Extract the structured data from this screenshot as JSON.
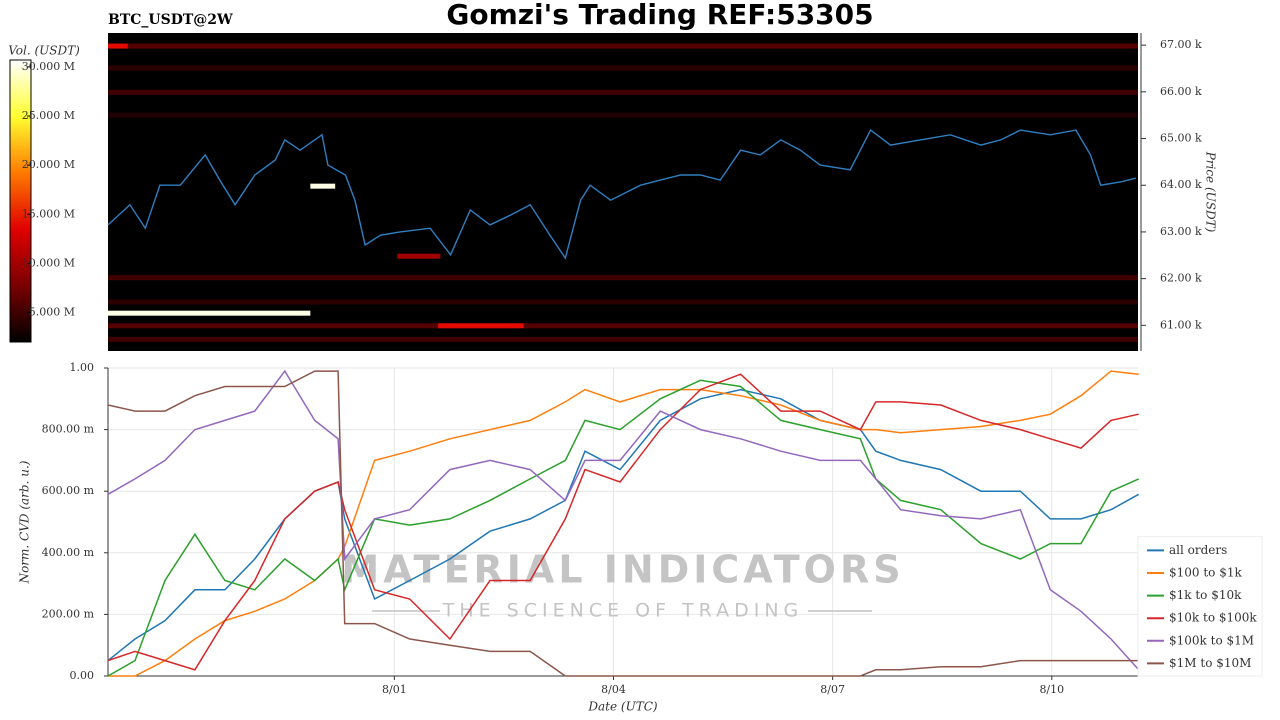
{
  "chart_data": [
    {
      "type": "heatmap",
      "title": "Gomzi's Trading REF:53305",
      "subtitle": "BTC_USDT@2W",
      "ylabel": "Price (USDT)",
      "zlabel": "Vol. (USDT)",
      "xlim": [
        -2.92,
        11.18
      ],
      "ylim": [
        60450,
        67260
      ],
      "yticks": [
        {
          "value": 61000,
          "label": "61.00 k"
        },
        {
          "value": 62000,
          "label": "62.00 k"
        },
        {
          "value": 63000,
          "label": "63.00 k"
        },
        {
          "value": 64000,
          "label": "64.00 k"
        },
        {
          "value": 65000,
          "label": "65.00 k"
        },
        {
          "value": 66000,
          "label": "66.00 k"
        },
        {
          "value": 67000,
          "label": "67.00 k"
        }
      ],
      "zlim": [
        2000000,
        30700000
      ],
      "zticks": [
        {
          "value": 5000000,
          "label": "5.000 M"
        },
        {
          "value": 10000000,
          "label": "10.000 M"
        },
        {
          "value": 15000000,
          "label": "15.000 M"
        },
        {
          "value": 20000000,
          "label": "20.000 M"
        },
        {
          "value": 25000000,
          "label": "25.000 M"
        },
        {
          "value": 30000000,
          "label": "30.000 M"
        }
      ],
      "colormap": [
        "#000000",
        "#7a0000",
        "#e00000",
        "#ff7a00",
        "#ffff30",
        "#ffffff"
      ],
      "background": "#000000",
      "levels": [
        {
          "price": 66980,
          "x": [
            -2.92,
            11.18
          ],
          "volume": 6000000
        },
        {
          "price": 66980,
          "x": [
            -2.92,
            -2.65
          ],
          "volume": 14000000
        },
        {
          "price": 66510,
          "x": [
            -2.92,
            11.18
          ],
          "volume": 4000000
        },
        {
          "price": 65990,
          "x": [
            -2.92,
            11.18
          ],
          "volume": 5000000
        },
        {
          "price": 65500,
          "x": [
            -2.92,
            11.18
          ],
          "volume": 3500000
        },
        {
          "price": 62480,
          "x": [
            1.04,
            1.63
          ],
          "volume": 10000000
        },
        {
          "price": 62020,
          "x": [
            -2.92,
            11.18
          ],
          "volume": 5000000
        },
        {
          "price": 61500,
          "x": [
            -2.92,
            11.18
          ],
          "volume": 4000000
        },
        {
          "price": 61260,
          "x": [
            -2.92,
            -0.15
          ],
          "volume": 30000000
        },
        {
          "price": 63980,
          "x": [
            -0.15,
            0.19
          ],
          "volume": 30000000
        },
        {
          "price": 60990,
          "x": [
            -2.92,
            11.18
          ],
          "volume": 6000000
        },
        {
          "price": 60990,
          "x": [
            1.6,
            2.77
          ],
          "volume": 14000000
        },
        {
          "price": 60700,
          "x": [
            -2.92,
            11.18
          ],
          "volume": 5000000
        }
      ],
      "x": [
        -2.92,
        -2.62,
        -2.41,
        -2.21,
        -1.93,
        -1.59,
        -1.39,
        -1.18,
        -0.91,
        -0.63,
        -0.5,
        -0.29,
        0.01,
        0.09,
        0.33,
        0.46,
        0.6,
        0.81,
        1.08,
        1.49,
        1.77,
        2.04,
        2.31,
        2.59,
        2.86,
        3.13,
        3.34,
        3.55,
        3.68,
        3.96,
        4.37,
        4.64,
        4.92,
        5.19,
        5.46,
        5.74,
        6.01,
        6.29,
        6.56,
        6.83,
        7.24,
        7.52,
        7.79,
        8.2,
        8.61,
        9.03,
        9.3,
        9.57,
        9.98,
        10.33,
        10.53,
        10.67,
        10.94,
        11.15
      ],
      "series": [
        {
          "color": "#2f7fc1",
          "values": [
            63150,
            63580,
            63080,
            64000,
            64000,
            64650,
            64110,
            63580,
            64220,
            64540,
            64970,
            64750,
            65080,
            64430,
            64220,
            63680,
            62720,
            62930,
            63000,
            63080,
            62510,
            63470,
            63150,
            63360,
            63580,
            62930,
            62440,
            63680,
            64000,
            63680,
            64000,
            64110,
            64220,
            64220,
            64110,
            64750,
            64650,
            64970,
            64750,
            64430,
            64330,
            65180,
            64860,
            64970,
            65080,
            64860,
            64970,
            65180,
            65080,
            65180,
            64650,
            64000,
            64070,
            64150
          ]
        }
      ]
    },
    {
      "type": "line",
      "xlabel": "Date (UTC)",
      "ylabel": "Norm. CVD (arb. u.)",
      "annotations": [
        "MATERIAL INDICATORS",
        "THE SCIENCE OF TRADING"
      ],
      "xlim": [
        -2.92,
        11.18
      ],
      "ylim": [
        0,
        1
      ],
      "xticks": [
        {
          "value": 1,
          "label": "8/01"
        },
        {
          "value": 4,
          "label": "8/04"
        },
        {
          "value": 7,
          "label": "8/07"
        },
        {
          "value": 10,
          "label": "8/10"
        }
      ],
      "yticks": [
        {
          "value": 0,
          "label": "0.00"
        },
        {
          "value": 0.2,
          "label": "200.00 m"
        },
        {
          "value": 0.4,
          "label": "400.00 m"
        },
        {
          "value": 0.6,
          "label": "600.00 m"
        },
        {
          "value": 0.8,
          "label": "800.00 m"
        },
        {
          "value": 1,
          "label": "1.00"
        }
      ],
      "grid": true,
      "legend": "lower right",
      "x": [
        -2.92,
        -2.55,
        -2.14,
        -1.73,
        -1.32,
        -0.91,
        -0.5,
        -0.09,
        0.23,
        0.32,
        0.73,
        1.21,
        1.76,
        2.31,
        2.86,
        3.34,
        3.61,
        4.09,
        4.64,
        5.19,
        5.74,
        6.29,
        6.83,
        7.38,
        7.59,
        7.93,
        8.48,
        9.03,
        9.57,
        9.98,
        10.4,
        10.81,
        11.19
      ],
      "series": [
        {
          "name": "all orders",
          "color": "#1f77b4",
          "values": [
            0.05,
            0.12,
            0.18,
            0.28,
            0.28,
            0.38,
            0.51,
            0.6,
            0.63,
            0.51,
            0.25,
            0.31,
            0.38,
            0.47,
            0.51,
            0.57,
            0.73,
            0.67,
            0.83,
            0.9,
            0.93,
            0.9,
            0.83,
            0.8,
            0.73,
            0.7,
            0.67,
            0.6,
            0.6,
            0.51,
            0.51,
            0.54,
            0.59
          ]
        },
        {
          "name": "$100 to $1k",
          "color": "#ff7f0e",
          "values": [
            0,
            0,
            0.05,
            0.12,
            0.18,
            0.21,
            0.25,
            0.31,
            0.38,
            0.42,
            0.7,
            0.73,
            0.77,
            0.8,
            0.83,
            0.89,
            0.93,
            0.89,
            0.93,
            0.93,
            0.91,
            0.88,
            0.83,
            0.8,
            0.8,
            0.79,
            0.8,
            0.81,
            0.83,
            0.85,
            0.91,
            0.99,
            0.98
          ]
        },
        {
          "name": "$1k to $10k",
          "color": "#2ca02c",
          "values": [
            0,
            0.05,
            0.31,
            0.46,
            0.31,
            0.28,
            0.38,
            0.31,
            0.38,
            0.28,
            0.51,
            0.49,
            0.51,
            0.57,
            0.64,
            0.7,
            0.83,
            0.8,
            0.9,
            0.96,
            0.94,
            0.83,
            0.8,
            0.77,
            0.64,
            0.57,
            0.54,
            0.43,
            0.38,
            0.43,
            0.43,
            0.6,
            0.64
          ]
        },
        {
          "name": "$10k to $100k",
          "color": "#d62728",
          "values": [
            0.05,
            0.08,
            0.05,
            0.02,
            0.18,
            0.31,
            0.51,
            0.6,
            0.63,
            0.54,
            0.28,
            0.25,
            0.12,
            0.31,
            0.31,
            0.51,
            0.67,
            0.63,
            0.8,
            0.93,
            0.98,
            0.86,
            0.86,
            0.8,
            0.89,
            0.89,
            0.88,
            0.83,
            0.8,
            0.77,
            0.74,
            0.83,
            0.85
          ]
        },
        {
          "name": "$100k to $1M",
          "color": "#9467bd",
          "values": [
            0.59,
            0.64,
            0.7,
            0.8,
            0.83,
            0.86,
            0.99,
            0.83,
            0.77,
            0.38,
            0.51,
            0.54,
            0.67,
            0.7,
            0.67,
            0.57,
            0.7,
            0.7,
            0.86,
            0.8,
            0.77,
            0.73,
            0.7,
            0.7,
            0.64,
            0.54,
            0.52,
            0.51,
            0.54,
            0.28,
            0.21,
            0.12,
            0.02
          ]
        },
        {
          "name": "$1M to $10M",
          "color": "#8c564b",
          "values": [
            0.88,
            0.86,
            0.86,
            0.91,
            0.94,
            0.94,
            0.94,
            0.99,
            0.99,
            0.17,
            0.17,
            0.12,
            0.1,
            0.08,
            0.08,
            0,
            0,
            0,
            0,
            0,
            0,
            0,
            0,
            0,
            0.02,
            0.02,
            0.03,
            0.03,
            0.05,
            0.05,
            0.05,
            0.05,
            0.05
          ]
        }
      ]
    }
  ]
}
